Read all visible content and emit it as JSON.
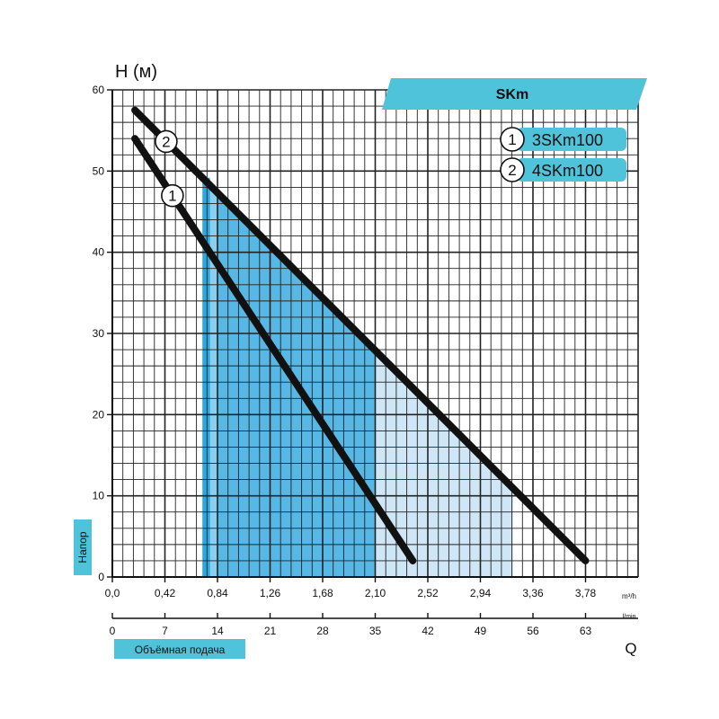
{
  "chart_data": {
    "type": "line",
    "title": "SKm",
    "ylabel_top": "H (м)",
    "ylabel_side": "Напор",
    "xlabel_bottom": "Объёмная подача",
    "q_label": "Q",
    "x_unit_m3h": "m³/h",
    "x_unit_lmin": "l/min",
    "ylim": [
      0,
      60
    ],
    "xlim_m3h": [
      0,
      4.2
    ],
    "xlim_lmin": [
      0,
      70
    ],
    "y_ticks": [
      "0",
      "10",
      "20",
      "30",
      "40",
      "50",
      "60"
    ],
    "x_ticks_m3h": [
      "0,0",
      "0,42",
      "0,84",
      "1,26",
      "1,68",
      "2,10",
      "2,52",
      "2,94",
      "3,36",
      "3,78"
    ],
    "x_ticks_lmin": [
      "0",
      "7",
      "14",
      "21",
      "28",
      "35",
      "42",
      "49",
      "56",
      "63"
    ],
    "grid": true,
    "legend_position": "top-right",
    "series": [
      {
        "name": "3SKm100",
        "marker": "1",
        "x": [
          0.18,
          2.4
        ],
        "y": [
          54,
          2
        ]
      },
      {
        "name": "4SKm100",
        "marker": "2",
        "x": [
          0.18,
          3.78
        ],
        "y": [
          57.5,
          2
        ]
      }
    ],
    "operating_region": {
      "light": {
        "x_from": 0.84,
        "x_to": 3.2
      },
      "dark": {
        "x_from": 0.84,
        "x_to": 2.1
      },
      "dark_bar": {
        "x_from": 0.72,
        "x_to": 0.78
      }
    },
    "colors": {
      "accent": "#4fc3d9",
      "series_line": "#111111",
      "region_light": "#cfe6f6",
      "region_mid": "#8fcdea",
      "region_dark": "#2aa8e0",
      "grid": "#222222"
    }
  }
}
